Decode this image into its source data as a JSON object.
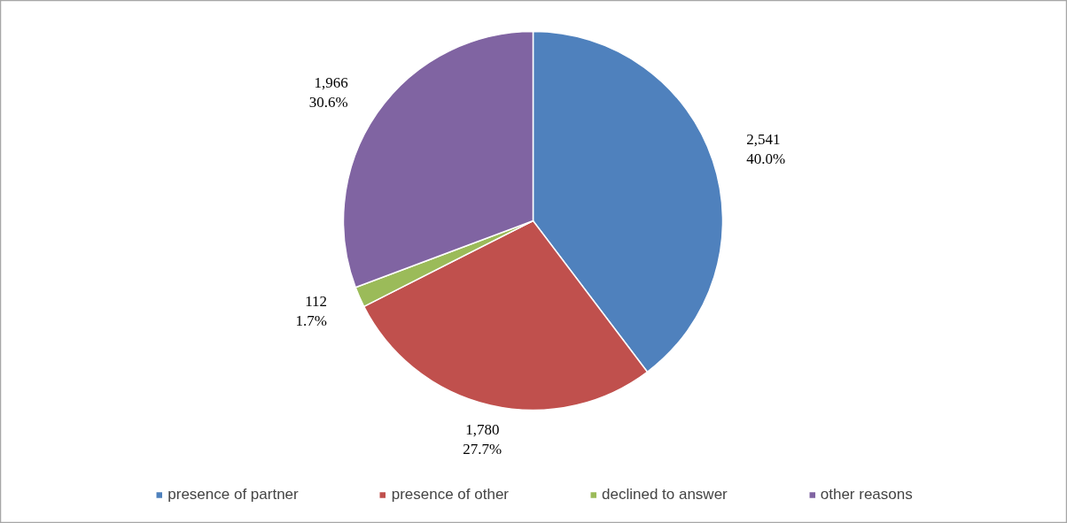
{
  "chart_data": {
    "type": "pie",
    "categories": [
      "presence of partner",
      "presence of other",
      "declined to answer",
      "other reasons"
    ],
    "values": [
      2541,
      1780,
      112,
      1966
    ],
    "colors": [
      "#4f81bd",
      "#c0504d",
      "#9bbb59",
      "#8064a2"
    ],
    "value_labels": [
      "2,541\n40.0%",
      "1,780\n27.7%",
      "112\n1.7%",
      "1,966\n30.6%"
    ],
    "legend": "bottom"
  }
}
